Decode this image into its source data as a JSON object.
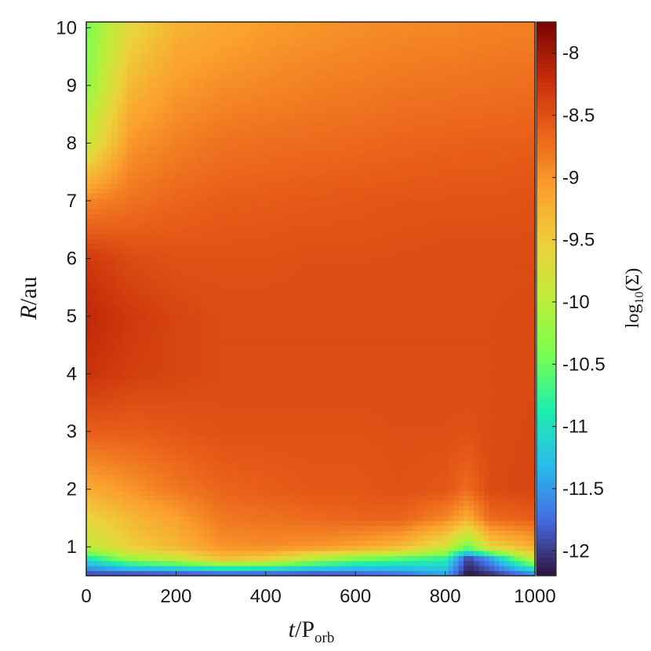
{
  "chart_data": {
    "type": "heatmap",
    "title": "",
    "xlabel": "t/P_orb",
    "ylabel": "R/au",
    "colorbar_label": "log10(Σ)",
    "xlim": [
      0,
      1000
    ],
    "ylim": [
      0.5,
      10.1
    ],
    "clim": [
      -12.2,
      -7.75
    ],
    "x_ticks": [
      0,
      200,
      400,
      600,
      800,
      1000
    ],
    "y_ticks": [
      1,
      2,
      3,
      4,
      5,
      6,
      7,
      8,
      9,
      10
    ],
    "colorbar_ticks": [
      -12,
      -11.5,
      -11,
      -10.5,
      -10,
      -9.5,
      -9,
      -8.5,
      -8
    ],
    "colormap": "turbo",
    "grid": false,
    "surface_density_profile": {
      "R": [
        0.5,
        0.8,
        1.0,
        1.5,
        2.0,
        3.0,
        4.0,
        5.0,
        6.0,
        7.0,
        8.0,
        9.0,
        10.0
      ],
      "t": [
        0,
        100,
        200,
        300,
        400,
        500,
        600,
        700,
        800,
        850,
        900,
        1000
      ],
      "log_sigma": [
        [
          -12.0,
          -11.0,
          -10.0,
          -9.6,
          -9.2,
          -8.6,
          -8.25,
          -8.15,
          -8.3,
          -8.9,
          -9.9,
          -10.3,
          -10.4
        ],
        [
          -12.1,
          -10.2,
          -9.5,
          -9.3,
          -9.0,
          -8.6,
          -8.35,
          -8.3,
          -8.45,
          -8.75,
          -9.0,
          -9.3,
          -9.6
        ],
        [
          -12.1,
          -9.9,
          -9.3,
          -9.1,
          -8.8,
          -8.55,
          -8.4,
          -8.4,
          -8.5,
          -8.65,
          -8.85,
          -9.05,
          -9.25
        ],
        [
          -12.1,
          -9.4,
          -9.0,
          -8.8,
          -8.65,
          -8.5,
          -8.45,
          -8.45,
          -8.5,
          -8.6,
          -8.75,
          -8.95,
          -9.15
        ],
        [
          -12.1,
          -9.5,
          -8.95,
          -8.75,
          -8.6,
          -8.5,
          -8.45,
          -8.45,
          -8.5,
          -8.58,
          -8.72,
          -8.9,
          -9.05
        ],
        [
          -12.1,
          -10.0,
          -9.0,
          -8.7,
          -8.55,
          -8.5,
          -8.45,
          -8.45,
          -8.48,
          -8.56,
          -8.7,
          -8.85,
          -9.0
        ],
        [
          -12.0,
          -10.4,
          -9.1,
          -8.65,
          -8.55,
          -8.5,
          -8.45,
          -8.45,
          -8.48,
          -8.55,
          -8.68,
          -8.82,
          -8.95
        ],
        [
          -11.8,
          -10.6,
          -9.3,
          -8.65,
          -8.5,
          -8.48,
          -8.45,
          -8.45,
          -8.47,
          -8.53,
          -8.65,
          -8.78,
          -8.92
        ],
        [
          -11.5,
          -10.8,
          -9.8,
          -8.9,
          -8.55,
          -8.48,
          -8.45,
          -8.45,
          -8.46,
          -8.52,
          -8.63,
          -8.76,
          -8.9
        ],
        [
          -12.2,
          -12.0,
          -10.5,
          -9.2,
          -8.7,
          -8.5,
          -8.45,
          -8.45,
          -8.46,
          -8.52,
          -8.62,
          -8.75,
          -8.88
        ],
        [
          -12.1,
          -11.5,
          -9.6,
          -8.7,
          -8.45,
          -8.45,
          -8.45,
          -8.45,
          -8.46,
          -8.52,
          -8.62,
          -8.74,
          -8.87
        ],
        [
          -11.8,
          -9.8,
          -9.2,
          -8.6,
          -8.4,
          -8.42,
          -8.43,
          -8.44,
          -8.45,
          -8.5,
          -8.6,
          -8.72,
          -8.85
        ]
      ]
    }
  }
}
